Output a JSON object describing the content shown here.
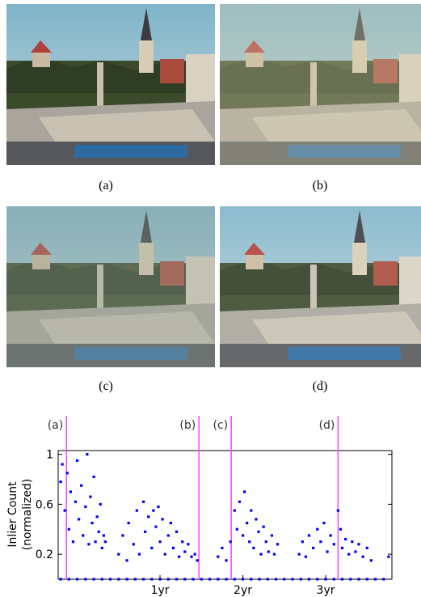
{
  "panels": [
    {
      "caption": "(a)"
    },
    {
      "caption": "(b)"
    },
    {
      "caption": "(c)"
    },
    {
      "caption": "(d)"
    }
  ],
  "chart_data": {
    "type": "scatter",
    "ylabel": [
      "Inlier Count",
      "(normalized)"
    ],
    "color": "#0000ff",
    "marker_color": "#ff44ff",
    "xlim": [
      -0.23,
      3.8
    ],
    "ylim": [
      0,
      1.03
    ],
    "xticks": [
      {
        "value": 1,
        "label": "1yr"
      },
      {
        "value": 2,
        "label": "2yr"
      },
      {
        "value": 3,
        "label": "3yr"
      }
    ],
    "yticks": [
      0.2,
      0.6,
      1
    ],
    "markers": [
      {
        "label": "(a)",
        "x": -0.13
      },
      {
        "label": "(b)",
        "x": 1.47
      },
      {
        "label": "(c)",
        "x": 1.86
      },
      {
        "label": "(d)",
        "x": 3.15
      }
    ],
    "x": [
      -0.2,
      -0.18,
      -0.15,
      -0.12,
      -0.1,
      -0.08,
      -0.05,
      -0.02,
      0.0,
      0.02,
      0.05,
      0.07,
      0.1,
      0.12,
      0.14,
      0.16,
      0.18,
      0.2,
      0.22,
      0.24,
      0.26,
      0.28,
      0.3,
      0.32,
      0.34,
      0.5,
      0.55,
      0.6,
      0.62,
      0.68,
      0.72,
      0.75,
      0.8,
      0.82,
      0.86,
      0.9,
      0.92,
      0.95,
      0.98,
      1.0,
      1.03,
      1.06,
      1.1,
      1.13,
      1.16,
      1.2,
      1.23,
      1.27,
      1.3,
      1.34,
      1.38,
      1.42,
      1.45,
      1.7,
      1.75,
      1.8,
      1.85,
      1.9,
      1.93,
      1.96,
      2.0,
      2.02,
      2.05,
      2.08,
      2.1,
      2.13,
      2.16,
      2.19,
      2.22,
      2.25,
      2.28,
      2.31,
      2.35,
      2.38,
      2.42,
      2.68,
      2.72,
      2.76,
      2.8,
      2.85,
      2.9,
      2.94,
      2.98,
      3.02,
      3.06,
      3.1,
      3.15,
      3.18,
      3.2,
      3.24,
      3.28,
      3.32,
      3.36,
      3.4,
      3.45,
      3.5,
      3.55,
      3.76,
      -0.2,
      -0.1,
      0.0,
      0.1,
      0.2,
      0.3,
      0.4,
      0.5,
      0.6,
      0.7,
      0.8,
      0.9,
      1.0,
      1.1,
      1.2,
      1.3,
      1.4,
      1.5,
      1.6,
      1.7,
      1.8,
      1.9,
      2.0,
      2.1,
      2.2,
      2.3,
      2.4,
      2.5,
      2.6,
      2.7,
      2.8,
      2.9,
      3.0,
      3.1,
      3.2,
      3.3,
      3.4,
      3.5,
      3.6,
      3.7
    ],
    "values": [
      0.78,
      0.92,
      0.55,
      0.85,
      0.4,
      0.7,
      0.3,
      0.62,
      0.95,
      0.48,
      0.75,
      0.35,
      0.58,
      1.0,
      0.28,
      0.66,
      0.45,
      0.82,
      0.3,
      0.5,
      0.38,
      0.6,
      0.25,
      0.35,
      0.3,
      0.2,
      0.35,
      0.15,
      0.45,
      0.28,
      0.55,
      0.2,
      0.62,
      0.38,
      0.5,
      0.25,
      0.55,
      0.42,
      0.58,
      0.3,
      0.48,
      0.2,
      0.35,
      0.45,
      0.25,
      0.38,
      0.18,
      0.3,
      0.22,
      0.28,
      0.18,
      0.2,
      0.15,
      0.18,
      0.25,
      0.15,
      0.3,
      0.55,
      0.4,
      0.62,
      0.35,
      0.7,
      0.45,
      0.3,
      0.55,
      0.25,
      0.48,
      0.38,
      0.2,
      0.42,
      0.3,
      0.22,
      0.35,
      0.2,
      0.28,
      0.2,
      0.3,
      0.18,
      0.35,
      0.25,
      0.4,
      0.3,
      0.45,
      0.22,
      0.35,
      0.28,
      0.55,
      0.4,
      0.25,
      0.32,
      0.2,
      0.3,
      0.22,
      0.28,
      0.18,
      0.25,
      0.15,
      0.18,
      0,
      0,
      0,
      0,
      0,
      0,
      0,
      0,
      0,
      0,
      0,
      0,
      0,
      0,
      0,
      0,
      0,
      0,
      0,
      0,
      0,
      0,
      0,
      0,
      0,
      0,
      0,
      0,
      0,
      0,
      0,
      0,
      0,
      0,
      0,
      0,
      0,
      0,
      0,
      0
    ]
  }
}
